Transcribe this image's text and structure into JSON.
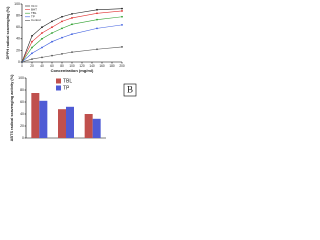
{
  "chart_data": [
    {
      "type": "line",
      "x_label": "Concentration (mg/ml)",
      "y_label": "DPPH radical scavenging (%)",
      "x": [
        0,
        20,
        40,
        60,
        80,
        100,
        150,
        200
      ],
      "series": [
        {
          "name": "Vit C",
          "color": "#222222",
          "values": [
            0,
            45,
            60,
            70,
            78,
            83,
            90,
            92
          ]
        },
        {
          "name": "BHT",
          "color": "#e03030",
          "values": [
            0,
            35,
            50,
            60,
            70,
            76,
            84,
            88
          ]
        },
        {
          "name": "TBL",
          "color": "#30a030",
          "values": [
            0,
            25,
            40,
            50,
            58,
            65,
            73,
            78
          ]
        },
        {
          "name": "TP",
          "color": "#4060e0",
          "values": [
            0,
            15,
            25,
            35,
            42,
            48,
            58,
            64
          ]
        },
        {
          "name": "Control",
          "color": "#555555",
          "values": [
            0,
            5,
            8,
            11,
            14,
            17,
            22,
            26
          ]
        }
      ],
      "xlim": [
        0,
        200
      ],
      "xticks": [
        0,
        20,
        40,
        60,
        80,
        100,
        120,
        140,
        160,
        180,
        200
      ],
      "ylim": [
        0,
        100
      ],
      "yticks": [
        0,
        20,
        40,
        60,
        80,
        100
      ]
    },
    {
      "type": "bar",
      "panel_label": "B",
      "y_label": "ABTS radical scavenging activity (%)",
      "categories": [
        null,
        null,
        null
      ],
      "series": [
        {
          "name": "TBL",
          "color": "#c0504d",
          "values": [
            75,
            48,
            40
          ]
        },
        {
          "name": "TP",
          "color": "#4f5bd5",
          "values": [
            62,
            52,
            32
          ]
        }
      ],
      "ylim": [
        0,
        100
      ],
      "yticks": [
        0,
        20,
        40,
        60,
        80,
        100
      ]
    }
  ]
}
